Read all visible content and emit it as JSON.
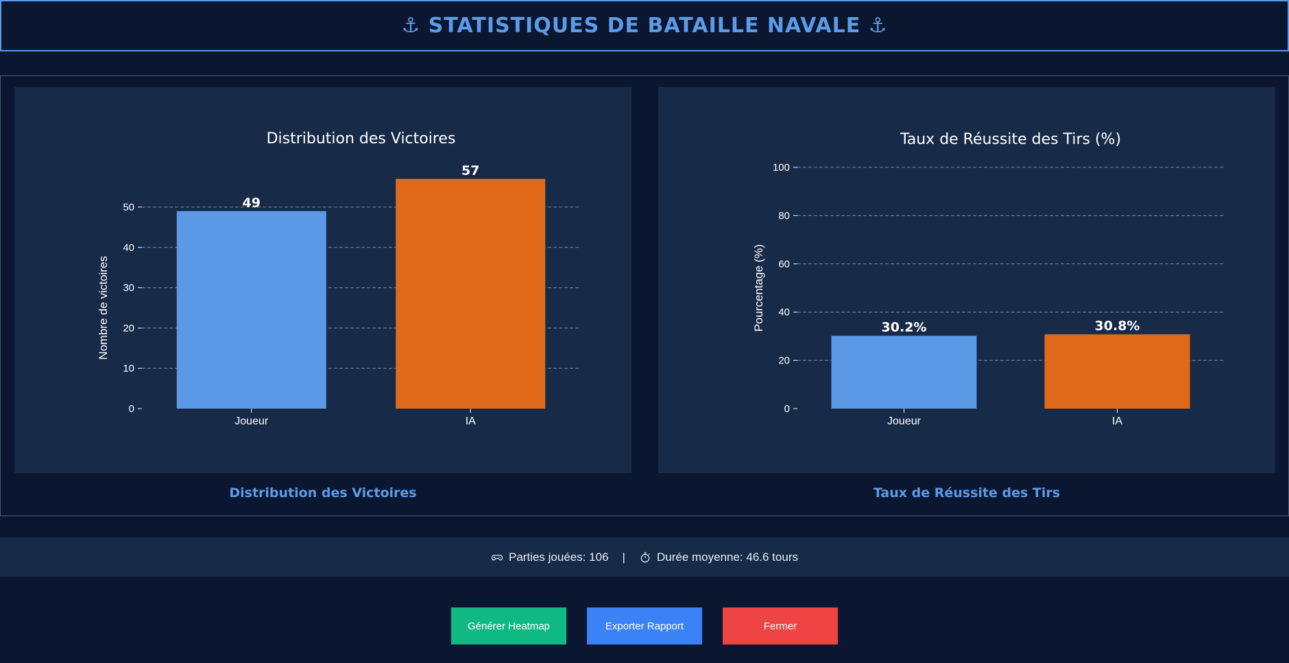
{
  "header": {
    "title": "⚓ STATISTIQUES DE BATAILLE NAVALE ⚓"
  },
  "colors": {
    "player": "#5b98e6",
    "ai": "#e06a1a",
    "accent": "#5b9be8"
  },
  "chart_data": [
    {
      "type": "bar",
      "title": "Distribution des Victoires",
      "ylabel": "Nombre de victoires",
      "xlabel": "",
      "categories": [
        "Joueur",
        "IA"
      ],
      "values": [
        49,
        57
      ],
      "value_labels": [
        "49",
        "57"
      ],
      "ylim": [
        0,
        60
      ],
      "yticks": [
        0,
        10,
        20,
        30,
        40,
        50
      ],
      "ytick_labels": [
        "0",
        "10",
        "20",
        "30",
        "40",
        "50"
      ],
      "grid": true
    },
    {
      "type": "bar",
      "title": "Taux de Réussite des Tirs (%)",
      "ylabel": "Pourcentage (%)",
      "xlabel": "",
      "categories": [
        "Joueur",
        "IA"
      ],
      "values": [
        30.2,
        30.8
      ],
      "value_labels": [
        "30.2%",
        "30.8%"
      ],
      "ylim": [
        0,
        100
      ],
      "yticks": [
        0,
        20,
        40,
        60,
        80,
        100
      ],
      "ytick_labels": [
        "0",
        "20",
        "40",
        "60",
        "80",
        "100"
      ],
      "grid": true
    }
  ],
  "captions": {
    "victories": "Distribution des Victoires",
    "accuracy": "Taux de Réussite des Tirs"
  },
  "footer": {
    "games_icon": "gamepad-icon",
    "games_text": "Parties jouées: 106",
    "separator": "|",
    "duration_icon": "stopwatch-icon",
    "duration_text": "Durée moyenne: 46.6 tours"
  },
  "buttons": {
    "heatmap": "Générer Heatmap",
    "export": "Exporter Rapport",
    "close": "Fermer"
  }
}
